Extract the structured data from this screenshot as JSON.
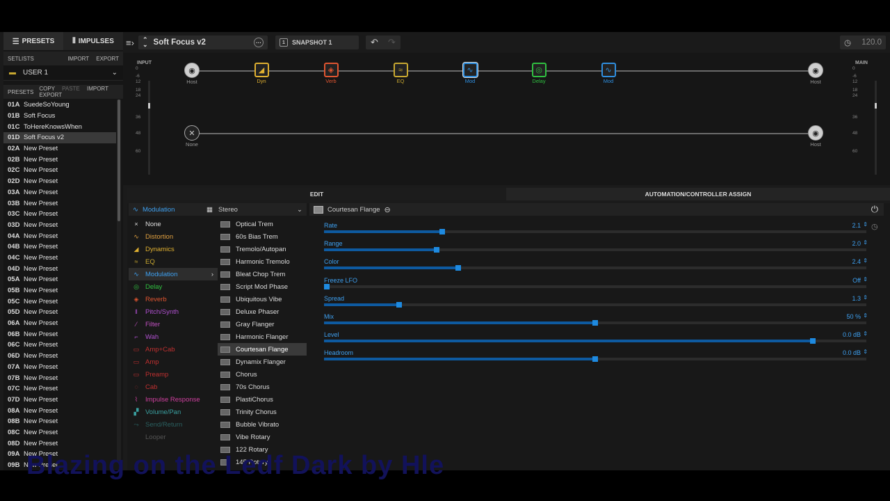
{
  "sidebar": {
    "tabs": [
      {
        "label": "PRESETS",
        "icon": "list-icon"
      },
      {
        "label": "IMPULSES",
        "icon": "impulse-icon"
      }
    ],
    "setlists": {
      "title": "SETLISTS",
      "import": "IMPORT",
      "export": "EXPORT",
      "selected": "USER 1"
    },
    "presets_header": {
      "title": "PRESETS",
      "copy": "COPY",
      "paste": "PASTE",
      "import": "IMPORT",
      "export": "EXPORT"
    },
    "presets": [
      {
        "num": "01A",
        "name": "SuedeSoYoung"
      },
      {
        "num": "01B",
        "name": "Soft Focus"
      },
      {
        "num": "01C",
        "name": "ToHereKnowsWhen"
      },
      {
        "num": "01D",
        "name": "Soft Focus v2"
      },
      {
        "num": "02A",
        "name": "New Preset"
      },
      {
        "num": "02B",
        "name": "New Preset"
      },
      {
        "num": "02C",
        "name": "New Preset"
      },
      {
        "num": "02D",
        "name": "New Preset"
      },
      {
        "num": "03A",
        "name": "New Preset"
      },
      {
        "num": "03B",
        "name": "New Preset"
      },
      {
        "num": "03C",
        "name": "New Preset"
      },
      {
        "num": "03D",
        "name": "New Preset"
      },
      {
        "num": "04A",
        "name": "New Preset"
      },
      {
        "num": "04B",
        "name": "New Preset"
      },
      {
        "num": "04C",
        "name": "New Preset"
      },
      {
        "num": "04D",
        "name": "New Preset"
      },
      {
        "num": "05A",
        "name": "New Preset"
      },
      {
        "num": "05B",
        "name": "New Preset"
      },
      {
        "num": "05C",
        "name": "New Preset"
      },
      {
        "num": "05D",
        "name": "New Preset"
      },
      {
        "num": "06A",
        "name": "New Preset"
      },
      {
        "num": "06B",
        "name": "New Preset"
      },
      {
        "num": "06C",
        "name": "New Preset"
      },
      {
        "num": "06D",
        "name": "New Preset"
      },
      {
        "num": "07A",
        "name": "New Preset"
      },
      {
        "num": "07B",
        "name": "New Preset"
      },
      {
        "num": "07C",
        "name": "New Preset"
      },
      {
        "num": "07D",
        "name": "New Preset"
      },
      {
        "num": "08A",
        "name": "New Preset"
      },
      {
        "num": "08B",
        "name": "New Preset"
      },
      {
        "num": "08C",
        "name": "New Preset"
      },
      {
        "num": "08D",
        "name": "New Preset"
      },
      {
        "num": "09A",
        "name": "New Preset"
      },
      {
        "num": "09B",
        "name": "New Preset"
      }
    ],
    "selected_index": 3
  },
  "topbar": {
    "preset_name": "Soft Focus v2",
    "snapshot": "SNAPSHOT 1",
    "tempo": "120.0"
  },
  "grid": {
    "input_label": "INPUT",
    "main_label": "MAIN",
    "scale": [
      "0",
      "-6",
      "12",
      "18",
      "24",
      "36",
      "48",
      "60"
    ],
    "path1": [
      {
        "label": "Host",
        "color": "#999999",
        "icon": "host-input-icon"
      },
      {
        "label": "Dyn",
        "color": "#e0b030",
        "icon": "dynamics-icon"
      },
      {
        "label": "Verb",
        "color": "#e05530",
        "icon": "reverb-icon"
      },
      {
        "label": "EQ",
        "color": "#c8a830",
        "icon": "eq-icon"
      },
      {
        "label": "Mod",
        "color": "#2f8fe0",
        "icon": "modulation-icon"
      },
      {
        "label": "Delay",
        "color": "#2fc040",
        "icon": "delay-icon"
      },
      {
        "label": "Mod",
        "color": "#2f8fe0",
        "icon": "modulation-icon"
      },
      {
        "label": "Host",
        "color": "#999999",
        "icon": "host-output-icon"
      }
    ],
    "path2": [
      {
        "label": "None",
        "color": "#999999",
        "icon": "none-input-icon"
      },
      {
        "label": "Host",
        "color": "#999999",
        "icon": "host-output-icon"
      }
    ]
  },
  "edit_tabs": [
    {
      "label": "EDIT"
    },
    {
      "label": "AUTOMATION/CONTROLLER ASSIGN"
    }
  ],
  "category_header": {
    "category": "Modulation",
    "mode": "Stereo"
  },
  "categories": [
    {
      "label": "None",
      "color": "#dddddd",
      "icon": "×"
    },
    {
      "label": "Distortion",
      "color": "#e0a040",
      "icon": "∿"
    },
    {
      "label": "Dynamics",
      "color": "#e0b030",
      "icon": "◢"
    },
    {
      "label": "EQ",
      "color": "#c8a830",
      "icon": "≈"
    },
    {
      "label": "Modulation",
      "color": "#3ea0f0",
      "icon": "∿"
    },
    {
      "label": "Delay",
      "color": "#30c040",
      "icon": "◎"
    },
    {
      "label": "Reverb",
      "color": "#e05530",
      "icon": "◈"
    },
    {
      "label": "Pitch/Synth",
      "color": "#b050d0",
      "icon": "‖"
    },
    {
      "label": "Filter",
      "color": "#c050c0",
      "icon": "⁄"
    },
    {
      "label": "Wah",
      "color": "#b050d0",
      "icon": "⌐"
    },
    {
      "label": "Amp+Cab",
      "color": "#c03030",
      "icon": "▭"
    },
    {
      "label": "Amp",
      "color": "#c03030",
      "icon": "▭"
    },
    {
      "label": "Preamp",
      "color": "#c03030",
      "icon": "▭"
    },
    {
      "label": "Cab",
      "color": "#c03030",
      "icon": "◌"
    },
    {
      "label": "Impulse Response",
      "color": "#d040a0",
      "icon": "⌇"
    },
    {
      "label": "Volume/Pan",
      "color": "#3aa0a0",
      "icon": "▞"
    },
    {
      "label": "Send/Return",
      "color": "#2a6060",
      "icon": "⤳"
    },
    {
      "label": "Looper",
      "color": "#555555",
      "icon": ""
    }
  ],
  "active_category_index": 4,
  "models": [
    "Optical Trem",
    "60s Bias Trem",
    "Tremolo/Autopan",
    "Harmonic Tremolo",
    "Bleat Chop Trem",
    "Script Mod Phase",
    "Ubiquitous Vibe",
    "Deluxe Phaser",
    "Gray Flanger",
    "Harmonic Flanger",
    "Courtesan Flange",
    "Dynamix Flanger",
    "Chorus",
    "70s Chorus",
    "PlastiChorus",
    "Trinity Chorus",
    "Bubble Vibrato",
    "Vibe Rotary",
    "122 Rotary",
    "145 Rotary"
  ],
  "active_model_index": 10,
  "param_header": {
    "model": "Courtesan Flange"
  },
  "params": [
    {
      "label": "Rate",
      "value": "2.1",
      "level": 0.215
    },
    {
      "label": "Range",
      "value": "2.0",
      "level": 0.205
    },
    {
      "label": "Color",
      "value": "2.4",
      "level": 0.245
    },
    {
      "label": "Freeze LFO",
      "value": "Off",
      "level": 0.0
    },
    {
      "label": "Spread",
      "value": "1.3",
      "level": 0.135
    },
    {
      "label": "Mix",
      "value": "50 %",
      "level": 0.5
    },
    {
      "label": "Level",
      "value": "0.0 dB",
      "level": 0.905
    },
    {
      "label": "Headroom",
      "value": "0.0 dB",
      "level": 0.5
    }
  ],
  "watermark": "Blazing on the Ledf Dark by Hle"
}
